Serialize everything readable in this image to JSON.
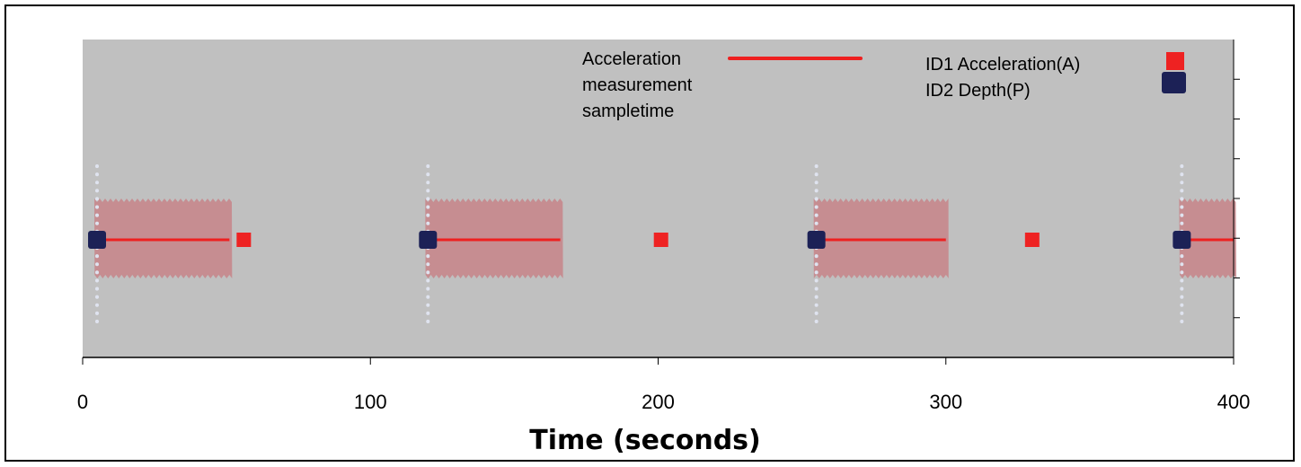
{
  "chart_data": {
    "type": "scatter",
    "title": "",
    "xlabel": "Time (seconds)",
    "ylabel": "",
    "xlim": [
      0,
      400
    ],
    "x_ticks": [
      0,
      100,
      200,
      300,
      400
    ],
    "x_tick_labels": [
      "0",
      "100",
      "200",
      "300",
      "400"
    ],
    "y_minor_ticks": 7,
    "grid": false,
    "legend_position": "top-right",
    "legend": {
      "line_label": [
        "Acceleration",
        "measurement",
        "sampletime"
      ],
      "marker_a_label": "ID1 Acceleration(A)",
      "marker_p_label": "ID2 Depth(P)"
    },
    "series": [
      {
        "name": "Acceleration measurement sampletime",
        "kind": "line",
        "segments": [
          [
            5,
            51
          ],
          [
            120,
            166
          ],
          [
            255,
            300
          ],
          [
            382,
            400
          ]
        ]
      },
      {
        "name": "ID1 Acceleration(A)",
        "kind": "marker",
        "x": [
          56,
          201,
          330
        ]
      },
      {
        "name": "ID2 Depth(P)",
        "kind": "marker",
        "x": [
          5,
          120,
          255,
          382
        ]
      }
    ],
    "colors": {
      "plot_background": "#c0c0c0",
      "acceleration_band": "#c68a8e",
      "acceleration_line": "#ee2020",
      "marker_a": "#ee2222",
      "marker_p": "#1c2156",
      "dotted_guide": "#dfe3ef"
    }
  }
}
